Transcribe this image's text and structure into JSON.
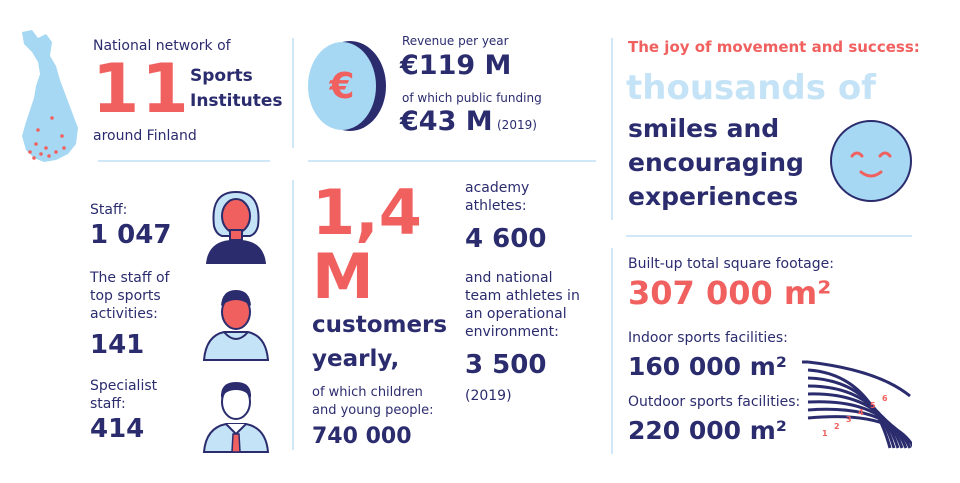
{
  "colors": {
    "navy": "#2b2c6e",
    "coral": "#f0605f",
    "light_blue": "#c4e3f6",
    "pale_blue": "#a6d8f3"
  },
  "institutes": {
    "intro": "National network of",
    "number": "11",
    "label_line1": "Sports",
    "label_line2": "Institutes",
    "outro": "around Finland",
    "icon": "finland-map-icon"
  },
  "revenue": {
    "label": "Revenue per year",
    "amount": "€119 M",
    "funding_label": "of which public funding",
    "funding_amount": "€43 M",
    "year": "(2019)",
    "coin_symbol": "€",
    "icon": "euro-coin-icon"
  },
  "joy": {
    "heading": "The joy of movement and success:",
    "highlight": "thousands of",
    "line1": "smiles and",
    "line2": "encouraging",
    "line3": "experiences",
    "icon": "smiley-face-icon"
  },
  "staff": {
    "staff_label": "Staff:",
    "staff_value": "1 047",
    "top_label_1": "The staff of",
    "top_label_2": "top sports",
    "top_label_3": "activities:",
    "top_value": "141",
    "specialist_label_1": "Specialist",
    "specialist_label_2": "staff:",
    "specialist_value": "414",
    "icons": [
      "woman-avatar-icon",
      "man-hoodie-avatar-icon",
      "man-tie-avatar-icon"
    ]
  },
  "customers": {
    "number_line1": "1,4",
    "number_line2": "M",
    "label_line1": "customers",
    "label_line2": "yearly,",
    "children_label_1": "of which children",
    "children_label_2": "and young people:",
    "children_value": "740 000"
  },
  "athletes": {
    "academy_label_1": "academy",
    "academy_label_2": "athletes:",
    "academy_value": "4 600",
    "national_label_1": "and national",
    "national_label_2": "team athletes in",
    "national_label_3": "an operational",
    "national_label_4": "environment:",
    "national_value": "3 500",
    "year": "(2019)"
  },
  "facilities": {
    "total_label": "Built-up total square footage:",
    "total_value": "307 000 m²",
    "indoor_label": "Indoor sports facilities:",
    "indoor_value": "160 000 m²",
    "outdoor_label": "Outdoor sports facilities:",
    "outdoor_value": "220 000 m²",
    "track_lanes": [
      "1",
      "2",
      "3",
      "4",
      "5",
      "6"
    ],
    "icon": "running-track-icon"
  }
}
